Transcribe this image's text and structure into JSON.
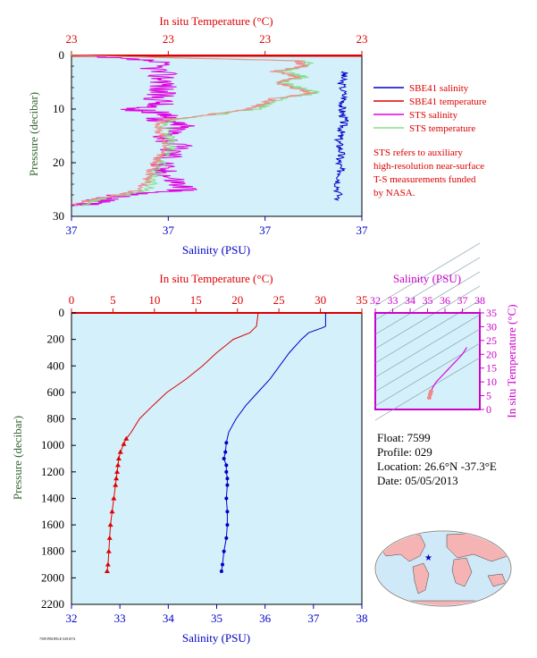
{
  "colors": {
    "salinity": "#0000c8",
    "temperature": "#dd0000",
    "sts_salinity": "#e000e0",
    "sts_temperature": "#88dd88",
    "plot_bg": "#d4f0fa",
    "ts_axis": "#cc00cc",
    "pressure_label": "#336633",
    "ts_fill": "#f08a8a"
  },
  "top_panel": {
    "temp_axis_label": "In situ Temperature (°C)",
    "temp_ticks": [
      "23",
      "23",
      "23",
      "23"
    ],
    "salinity_axis_label": "Salinity (PSU)",
    "salinity_ticks": [
      "37",
      "37",
      "37",
      "37"
    ],
    "pressure_axis_label": "Pressure (decibar)",
    "pressure_ticks": [
      "0",
      "10",
      "20",
      "30"
    ],
    "legend": [
      {
        "label": "SBE41 salinity",
        "color": "#0000c8"
      },
      {
        "label": "SBE41 temperature",
        "color": "#dd0000"
      },
      {
        "label": "STS salinity",
        "color": "#e000e0"
      },
      {
        "label": "STS temperature",
        "color": "#88dd88"
      }
    ],
    "note": [
      "STS refers to auxiliary",
      "high-resolution near-surface",
      "T-S measurements funded",
      "by NASA."
    ]
  },
  "bottom_panel": {
    "temp_axis_label": "In situ Temperature (°C)",
    "temp_ticks": [
      "0",
      "5",
      "10",
      "15",
      "20",
      "25",
      "30",
      "35"
    ],
    "salinity_axis_label": "Salinity (PSU)",
    "salinity_ticks": [
      "32",
      "33",
      "34",
      "35",
      "36",
      "37",
      "38"
    ],
    "pressure_axis_label": "Pressure (decibar)",
    "pressure_ticks": [
      "0",
      "200",
      "400",
      "600",
      "800",
      "1000",
      "1200",
      "1400",
      "1600",
      "1800",
      "2000",
      "2200"
    ]
  },
  "ts_panel": {
    "salinity_label": "Salinity (PSU)",
    "salinity_ticks": [
      "32",
      "33",
      "34",
      "35",
      "36",
      "37",
      "38"
    ],
    "temp_label": "In situ Temperature (°C)",
    "temp_ticks": [
      "0",
      "5",
      "10",
      "15",
      "20",
      "25",
      "30",
      "35"
    ]
  },
  "info": {
    "float": "Float:  7599",
    "profile": "Profile:  029",
    "location": "Location:  26.6°N  -37.3°E",
    "date": "Date:  05/05/2013"
  },
  "footer_small": "7599 PROFILE 0291074",
  "chart_data": [
    {
      "type": "line",
      "title": "",
      "x_top_label": "In situ Temperature (°C)",
      "x_bottom_label": "Salinity (PSU)",
      "ylabel": "Pressure (decibar)",
      "ylim": [
        0,
        30
      ],
      "series": [
        {
          "name": "SBE41 salinity",
          "pressure": [
            3,
            5,
            8,
            10,
            12,
            14,
            16,
            18,
            20,
            22,
            24,
            27
          ],
          "x_frac": [
            0.94,
            0.93,
            0.94,
            0.93,
            0.94,
            0.93,
            0.92,
            0.93,
            0.92,
            0.93,
            0.92,
            0.92
          ]
        },
        {
          "name": "SBE41 temperature",
          "pressure": [
            0,
            0.5
          ],
          "x_frac": [
            0.0,
            1.0
          ]
        },
        {
          "name": "STS salinity",
          "pressure": [
            0,
            1,
            3,
            5,
            7,
            9,
            10,
            11,
            12,
            13,
            15,
            17,
            19,
            21,
            23,
            25,
            26,
            27,
            28
          ],
          "x_frac": [
            0.0,
            0.28,
            0.3,
            0.33,
            0.3,
            0.31,
            0.2,
            0.35,
            0.3,
            0.38,
            0.33,
            0.36,
            0.34,
            0.3,
            0.35,
            0.4,
            0.18,
            0.1,
            0.02
          ]
        },
        {
          "name": "STS temperature",
          "pressure": [
            0,
            1,
            2,
            3,
            4,
            5,
            6,
            7,
            8,
            9,
            10,
            11,
            12,
            13,
            15,
            17,
            19,
            21,
            23,
            25,
            26,
            27,
            28
          ],
          "x_frac": [
            0.0,
            0.8,
            0.82,
            0.72,
            0.8,
            0.72,
            0.78,
            0.85,
            0.72,
            0.68,
            0.63,
            0.5,
            0.34,
            0.32,
            0.33,
            0.34,
            0.32,
            0.3,
            0.28,
            0.26,
            0.18,
            0.08,
            0.03
          ]
        }
      ]
    },
    {
      "type": "line",
      "title": "",
      "x_top_label": "In situ Temperature (°C)",
      "x_bottom_label": "Salinity (PSU)",
      "ylabel": "Pressure (decibar)",
      "ylim": [
        0,
        2200
      ],
      "temperature_xlim": [
        0,
        35
      ],
      "salinity_xlim": [
        32,
        38
      ],
      "series": [
        {
          "name": "Temperature",
          "axis": "temperature",
          "pressure": [
            0,
            100,
            150,
            200,
            300,
            400,
            500,
            600,
            700,
            800,
            900,
            950,
            990,
            1050,
            1100,
            1150,
            1200,
            1250,
            1300,
            1400,
            1500,
            1600,
            1700,
            1800,
            1900,
            1950
          ],
          "values": [
            22.5,
            22.3,
            21.5,
            19.5,
            17.5,
            15.8,
            13.8,
            11.5,
            9.8,
            8.2,
            7.2,
            6.6,
            6.3,
            5.9,
            5.7,
            5.6,
            5.5,
            5.4,
            5.3,
            5.1,
            4.9,
            4.7,
            4.6,
            4.5,
            4.4,
            4.3
          ]
        },
        {
          "name": "Salinity",
          "axis": "salinity",
          "pressure": [
            0,
            100,
            110,
            150,
            200,
            300,
            400,
            500,
            600,
            700,
            800,
            900,
            980,
            1050,
            1100,
            1150,
            1200,
            1250,
            1300,
            1400,
            1500,
            1600,
            1700,
            1800,
            1900,
            1950
          ],
          "values": [
            37.25,
            37.25,
            37.2,
            36.9,
            36.75,
            36.5,
            36.3,
            36.1,
            35.85,
            35.6,
            35.4,
            35.25,
            35.2,
            35.18,
            35.15,
            35.2,
            35.2,
            35.22,
            35.22,
            35.2,
            35.22,
            35.22,
            35.2,
            35.15,
            35.12,
            35.1
          ]
        }
      ]
    },
    {
      "type": "scatter",
      "title": "",
      "xlabel": "Salinity (PSU)",
      "ylabel": "In situ Temperature (°C)",
      "xlim": [
        32,
        38
      ],
      "ylim": [
        0,
        35
      ],
      "series": [
        {
          "name": "T-S",
          "x": [
            35.1,
            35.15,
            35.2,
            35.3,
            35.5,
            35.8,
            36.1,
            36.4,
            36.7,
            37.0,
            37.25
          ],
          "y": [
            4.3,
            5.5,
            6.5,
            8,
            10,
            12,
            14,
            16,
            18,
            20,
            22.5
          ]
        }
      ]
    }
  ]
}
